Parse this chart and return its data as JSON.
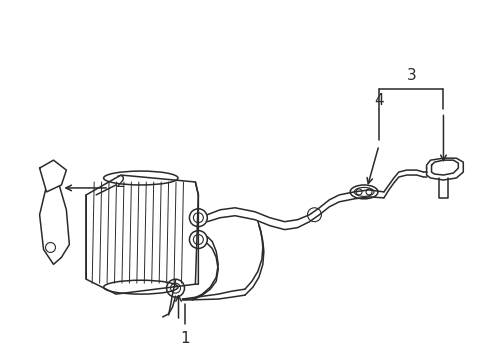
{
  "background_color": "#ffffff",
  "line_color": "#2a2a2a",
  "line_width": 1.1,
  "fig_width": 4.89,
  "fig_height": 3.6
}
